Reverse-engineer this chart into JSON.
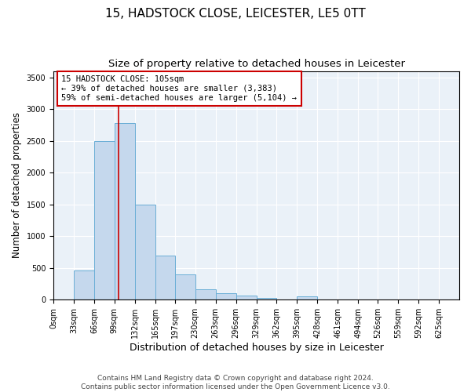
{
  "title": "15, HADSTOCK CLOSE, LEICESTER, LE5 0TT",
  "subtitle": "Size of property relative to detached houses in Leicester",
  "xlabel": "Distribution of detached houses by size in Leicester",
  "ylabel": "Number of detached properties",
  "bar_color": "#c5d8ed",
  "bar_edge_color": "#6aaed6",
  "background_color": "#eaf1f8",
  "grid_color": "#ffffff",
  "annotation_line_color": "#cc0000",
  "annotation_box_color": "#cc0000",
  "annotation_text": "15 HADSTOCK CLOSE: 105sqm\n← 39% of detached houses are smaller (3,383)\n59% of semi-detached houses are larger (5,104) →",
  "property_size": 105,
  "bin_edges": [
    0,
    33,
    66,
    99,
    132,
    165,
    197,
    230,
    263,
    296,
    329,
    362,
    395,
    428,
    461,
    494,
    526,
    559,
    592,
    625,
    658
  ],
  "bar_heights": [
    10,
    460,
    2500,
    2780,
    1500,
    700,
    400,
    160,
    100,
    60,
    35,
    10,
    55,
    10,
    0,
    0,
    0,
    0,
    0,
    0
  ],
  "ylim": [
    0,
    3600
  ],
  "yticks": [
    0,
    500,
    1000,
    1500,
    2000,
    2500,
    3000,
    3500
  ],
  "footer_text": "Contains HM Land Registry data © Crown copyright and database right 2024.\nContains public sector information licensed under the Open Government Licence v3.0.",
  "title_fontsize": 11,
  "subtitle_fontsize": 9.5,
  "xlabel_fontsize": 9,
  "ylabel_fontsize": 8.5,
  "tick_fontsize": 7,
  "footer_fontsize": 6.5,
  "annotation_fontsize": 7.5
}
